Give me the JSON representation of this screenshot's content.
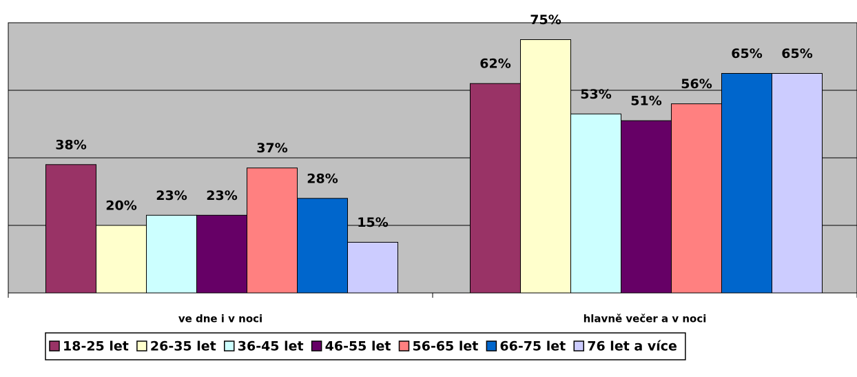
{
  "chart_data": {
    "type": "bar",
    "categories": [
      "ve dne i v noci",
      "hlavně večer a v noci"
    ],
    "series": [
      {
        "name": "18-25 let",
        "color": "#993366",
        "values": [
          38,
          62
        ],
        "value_labels": [
          "38%",
          "62%"
        ]
      },
      {
        "name": "26-35 let",
        "color": "#ffffcc",
        "values": [
          20,
          75
        ],
        "value_labels": [
          "20%",
          "75%"
        ]
      },
      {
        "name": "36-45 let",
        "color": "#ccffff",
        "values": [
          23,
          53
        ],
        "value_labels": [
          "23%",
          "53%"
        ]
      },
      {
        "name": "46-55 let",
        "color": "#660066",
        "values": [
          23,
          51
        ],
        "value_labels": [
          "23%",
          "51%"
        ]
      },
      {
        "name": "56-65 let",
        "color": "#ff8080",
        "values": [
          37,
          56
        ],
        "value_labels": [
          "37%",
          "56%"
        ]
      },
      {
        "name": "66-75 let",
        "color": "#0066cc",
        "values": [
          28,
          65
        ],
        "value_labels": [
          "28%",
          "65%"
        ]
      },
      {
        "name": "76 let a více",
        "color": "#ccccff",
        "values": [
          15,
          65
        ],
        "value_labels": [
          "15%",
          "65%"
        ]
      }
    ],
    "ylim": [
      0,
      80
    ],
    "yticks": [
      0,
      20,
      40,
      60,
      80
    ],
    "grid": true,
    "legend": "bottom"
  }
}
